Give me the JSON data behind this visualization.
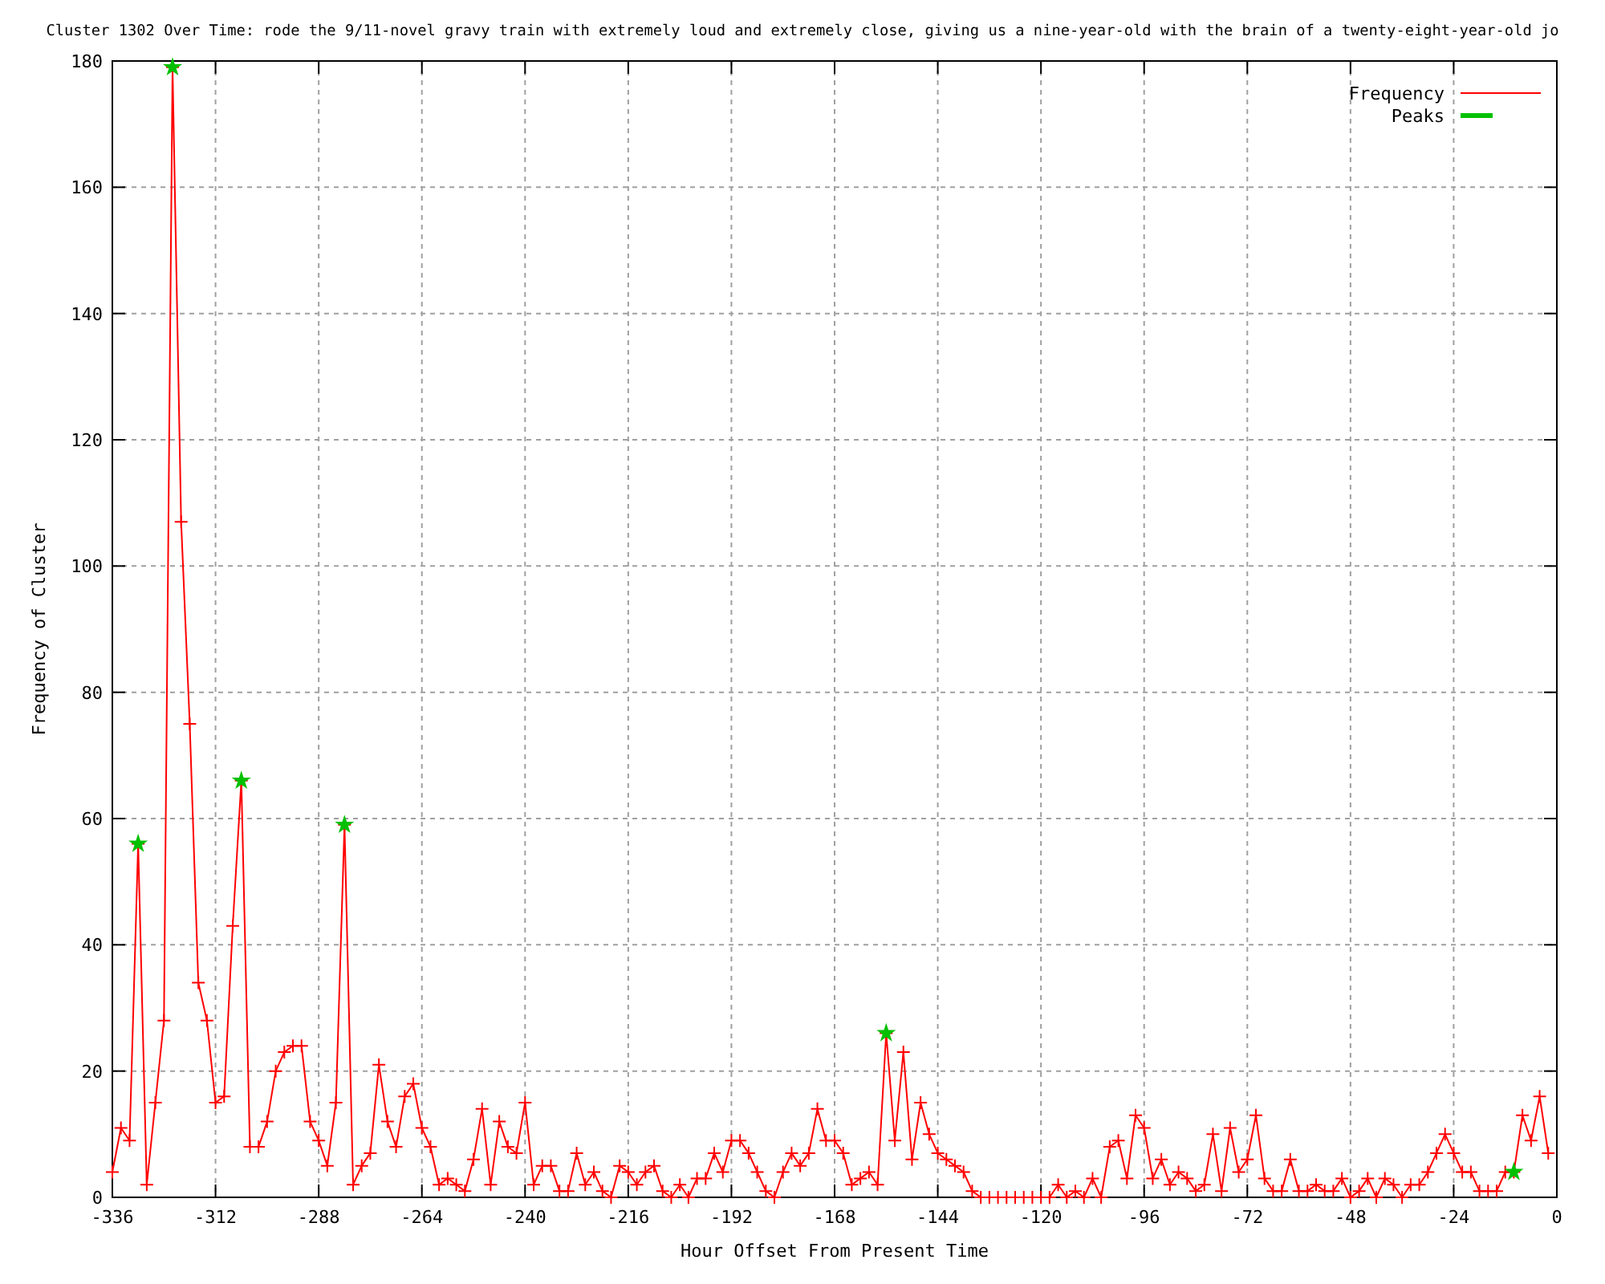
{
  "chart_data": {
    "type": "line",
    "title": "Cluster 1302 Over Time: rode the 9/11-novel gravy train with extremely loud and extremely close, giving us a nine-year-old with the brain of a twenty-eight-year-old jo",
    "xlabel": "Hour Offset From Present Time",
    "ylabel": "Frequency of Cluster",
    "xlim": [
      -336,
      0
    ],
    "xticks": [
      -336,
      -312,
      -288,
      -264,
      -240,
      -216,
      -192,
      -168,
      -144,
      -120,
      -96,
      -72,
      -48,
      -24,
      0
    ],
    "ylim": [
      0,
      180
    ],
    "yticks": [
      0,
      20,
      40,
      60,
      80,
      100,
      120,
      140,
      160,
      180
    ],
    "grid": true,
    "legend": "top right",
    "series": [
      {
        "name": "Frequency",
        "color": "#ff0000",
        "marker": "cross",
        "line_style": "solid",
        "x": [
          -336,
          -334,
          -332,
          -330,
          -328,
          -326,
          -324,
          -322,
          -320,
          -318,
          -316,
          -314,
          -312,
          -310,
          -308,
          -306,
          -304,
          -302,
          -300,
          -298,
          -296,
          -294,
          -292,
          -290,
          -288,
          -286,
          -284,
          -282,
          -280,
          -278,
          -276,
          -274,
          -272,
          -270,
          -268,
          -266,
          -264,
          -262,
          -260,
          -258,
          -256,
          -254,
          -252,
          -250,
          -248,
          -246,
          -244,
          -242,
          -240,
          -238,
          -236,
          -234,
          -232,
          -230,
          -228,
          -226,
          -224,
          -222,
          -220,
          -218,
          -216,
          -214,
          -212,
          -210,
          -208,
          -206,
          -204,
          -202,
          -200,
          -198,
          -196,
          -194,
          -192,
          -190,
          -188,
          -186,
          -184,
          -182,
          -180,
          -178,
          -176,
          -174,
          -172,
          -170,
          -168,
          -166,
          -164,
          -162,
          -160,
          -158,
          -156,
          -154,
          -152,
          -150,
          -148,
          -146,
          -144,
          -142,
          -140,
          -138,
          -136,
          -134,
          -132,
          -130,
          -128,
          -126,
          -124,
          -122,
          -120,
          -118,
          -116,
          -114,
          -112,
          -110,
          -108,
          -106,
          -104,
          -102,
          -100,
          -98,
          -96,
          -94,
          -92,
          -90,
          -88,
          -86,
          -84,
          -82,
          -80,
          -78,
          -76,
          -74,
          -72,
          -70,
          -68,
          -66,
          -64,
          -62,
          -60,
          -58,
          -56,
          -54,
          -52,
          -50,
          -48,
          -46,
          -44,
          -42,
          -40,
          -38,
          -36,
          -34,
          -32,
          -30,
          -28,
          -26,
          -24,
          -22,
          -20,
          -18,
          -16,
          -14,
          -12,
          -10,
          -8,
          -6,
          -4,
          -2
        ],
        "values": [
          4,
          11,
          9,
          56,
          2,
          15,
          28,
          179,
          107,
          75,
          34,
          28,
          15,
          16,
          43,
          66,
          8,
          8,
          12,
          20,
          23,
          24,
          24,
          12,
          9,
          5,
          15,
          59,
          2,
          5,
          7,
          21,
          12,
          8,
          16,
          18,
          11,
          8,
          2,
          3,
          2,
          1,
          6,
          14,
          2,
          12,
          8,
          7,
          15,
          2,
          5,
          5,
          1,
          1,
          7,
          2,
          4,
          1,
          0,
          5,
          4,
          2,
          4,
          5,
          1,
          0,
          2,
          0,
          3,
          3,
          7,
          4,
          9,
          9,
          7,
          4,
          1,
          0,
          4,
          7,
          5,
          7,
          14,
          9,
          9,
          7,
          2,
          3,
          4,
          2,
          26,
          9,
          23,
          6,
          15,
          10,
          7,
          6,
          5,
          4,
          1,
          0,
          0,
          0,
          0,
          0,
          0,
          0,
          0,
          0,
          2,
          0,
          1,
          0,
          3,
          0,
          8,
          9,
          3,
          13,
          11,
          3,
          6,
          2,
          4,
          3,
          1,
          2,
          10,
          1,
          11,
          4,
          6,
          13,
          3,
          1,
          1,
          6,
          1,
          1,
          2,
          1,
          1,
          3,
          0,
          1,
          3,
          0,
          3,
          2,
          0,
          2,
          2,
          4,
          7,
          10,
          7,
          4,
          4,
          1,
          1,
          1,
          4,
          4,
          13,
          9,
          16,
          7
        ]
      },
      {
        "name": "Peaks",
        "type": "scatter",
        "color": "#00c000",
        "marker": "star",
        "x": [
          -330,
          -322,
          -306,
          -282,
          -156,
          -10
        ],
        "values": [
          56,
          179,
          66,
          59,
          26,
          4
        ]
      }
    ]
  }
}
